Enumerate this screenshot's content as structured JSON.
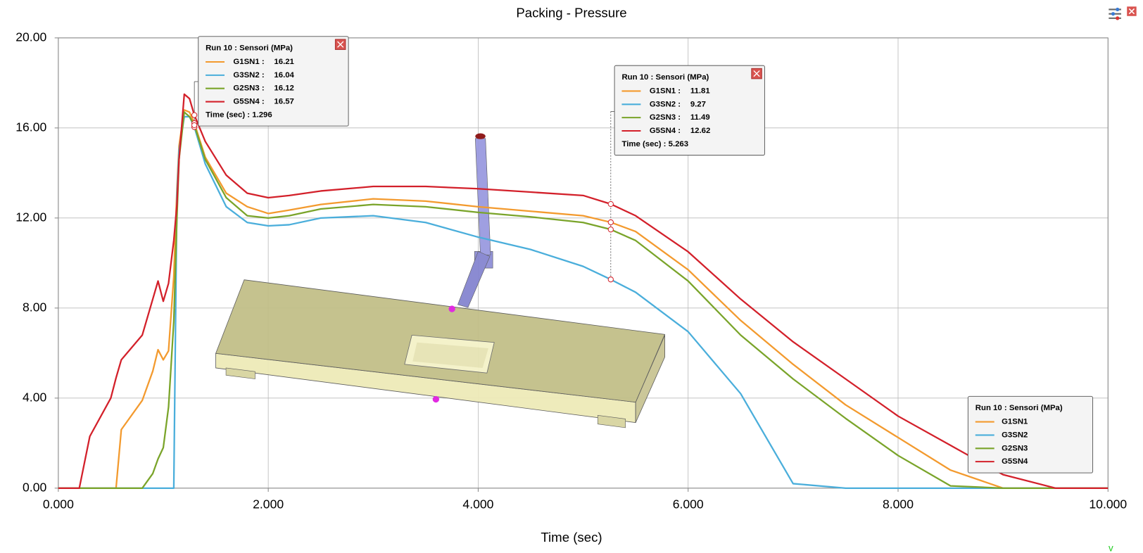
{
  "chart_data": {
    "type": "line",
    "title": "Packing - Pressure",
    "x_label": "Time (sec)",
    "xlim": [
      0,
      10
    ],
    "ylim": [
      0,
      20
    ],
    "grid": true,
    "xticks": [
      {
        "value": 0,
        "label": "0.000"
      },
      {
        "value": 2,
        "label": "2.000"
      },
      {
        "value": 4,
        "label": "4.000"
      },
      {
        "value": 6,
        "label": "6.000"
      },
      {
        "value": 8,
        "label": "8.000"
      },
      {
        "value": 10,
        "label": "10.000"
      }
    ],
    "yticks": [
      {
        "value": 0,
        "label": "0.00"
      },
      {
        "value": 4,
        "label": "4.00"
      },
      {
        "value": 8,
        "label": "8.00"
      },
      {
        "value": 12,
        "label": "12.00"
      },
      {
        "value": 16,
        "label": "16.00"
      },
      {
        "value": 20,
        "label": "20.00"
      }
    ],
    "x": [
      0,
      0.2,
      0.3,
      0.5,
      0.55,
      0.6,
      0.8,
      0.9,
      0.95,
      1.0,
      1.05,
      1.1,
      1.13,
      1.15,
      1.2,
      1.25,
      1.296,
      1.4,
      1.6,
      1.8,
      2.0,
      2.2,
      2.5,
      3.0,
      3.5,
      4.0,
      4.5,
      5.0,
      5.263,
      5.5,
      6.0,
      6.5,
      7.0,
      7.5,
      8.0,
      8.5,
      9.0,
      9.5,
      10.0
    ],
    "series": [
      {
        "name": "G1SN1",
        "color": "#f39a2e",
        "values": [
          0,
          0,
          0,
          0,
          0,
          2.6,
          3.9,
          5.2,
          6.15,
          5.7,
          6.1,
          9.4,
          13.3,
          15.2,
          16.8,
          16.7,
          16.21,
          14.7,
          13.1,
          12.5,
          12.2,
          12.35,
          12.6,
          12.85,
          12.75,
          12.5,
          12.3,
          12.1,
          11.81,
          11.4,
          9.7,
          7.45,
          5.5,
          3.7,
          2.25,
          0.8,
          0,
          0,
          0
        ]
      },
      {
        "name": "G3SN2",
        "color": "#4aaedb",
        "values": [
          0,
          0,
          0,
          0,
          0,
          0,
          0,
          0,
          0,
          0,
          0,
          0,
          13.0,
          15.0,
          16.5,
          16.5,
          16.04,
          14.4,
          12.5,
          11.8,
          11.65,
          11.7,
          12.0,
          12.1,
          11.8,
          11.15,
          10.6,
          9.85,
          9.27,
          8.7,
          6.95,
          4.2,
          0.2,
          0,
          0,
          0,
          0,
          0,
          0
        ]
      },
      {
        "name": "G2SN3",
        "color": "#7aa42a",
        "values": [
          0,
          0,
          0,
          0,
          0,
          0,
          0,
          0.65,
          1.3,
          1.8,
          3.6,
          7.4,
          12.0,
          14.6,
          16.7,
          16.5,
          16.12,
          14.6,
          12.9,
          12.1,
          12.0,
          12.1,
          12.4,
          12.6,
          12.5,
          12.25,
          12.05,
          11.8,
          11.49,
          11.0,
          9.2,
          6.8,
          4.85,
          3.1,
          1.45,
          0.1,
          0,
          0,
          0
        ]
      },
      {
        "name": "G5SN4",
        "color": "#d3202a",
        "values": [
          0,
          0,
          2.3,
          4.0,
          4.9,
          5.7,
          6.8,
          8.4,
          9.2,
          8.3,
          9.1,
          11.0,
          12.6,
          14.6,
          17.5,
          17.3,
          16.57,
          15.4,
          13.9,
          13.1,
          12.9,
          13.0,
          13.2,
          13.4,
          13.4,
          13.3,
          13.15,
          13.0,
          12.62,
          12.1,
          10.5,
          8.4,
          6.5,
          4.85,
          3.2,
          1.9,
          0.6,
          0,
          0
        ]
      }
    ],
    "legend_title": "Run 10 : Sensori (MPa)",
    "legend_position": "lower right",
    "tooltips": [
      {
        "title": "Run 10 : Sensori (MPa)",
        "time_label": "Time (sec) : 1.296",
        "time": 1.296,
        "rows": [
          {
            "label": "G1SN1 :",
            "value": 16.21
          },
          {
            "label": "G3SN2 :",
            "value": 16.04
          },
          {
            "label": "G2SN3 :",
            "value": 16.12
          },
          {
            "label": "G5SN4 :",
            "value": 16.57
          }
        ]
      },
      {
        "title": "Run 10 : Sensori (MPa)",
        "time_label": "Time (sec) : 5.263",
        "time": 5.263,
        "rows": [
          {
            "label": "G1SN1 :",
            "value": 11.81
          },
          {
            "label": "G3SN2 :",
            "value": 9.27
          },
          {
            "label": "G2SN3 :",
            "value": 11.49
          },
          {
            "label": "G5SN4 :",
            "value": 12.62
          }
        ]
      }
    ],
    "corner_mark": "v"
  }
}
